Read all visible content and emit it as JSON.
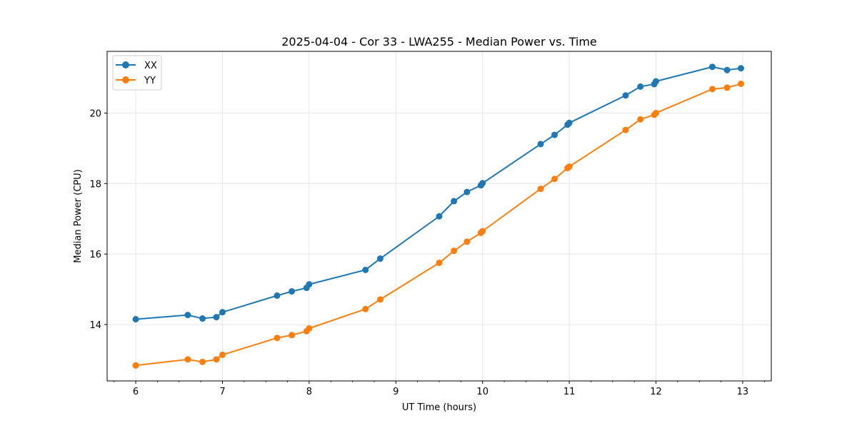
{
  "chart_data": {
    "type": "line",
    "title": "2025-04-04 - Cor 33 - LWA255 - Median Power vs. Time",
    "xlabel": "UT Time (hours)",
    "ylabel": "Median Power (CPU)",
    "xlim": [
      5.67,
      13.33
    ],
    "ylim": [
      12.4,
      21.75
    ],
    "xticks": [
      6,
      7,
      8,
      9,
      10,
      11,
      12,
      13
    ],
    "xtick_labels": [
      "6",
      "7",
      "8",
      "9",
      "10",
      "11",
      "12",
      "13"
    ],
    "yticks": [
      14,
      16,
      18,
      20
    ],
    "ytick_labels": [
      "14",
      "16",
      "18",
      "20"
    ],
    "x_minor_step": 0.25,
    "grid": true,
    "legend_position": "top-left",
    "series": [
      {
        "name": "XX",
        "color": "#1f77b4",
        "x": [
          6.0,
          6.6,
          6.77,
          6.93,
          7.0,
          7.63,
          7.8,
          7.97,
          8.0,
          8.65,
          8.82,
          9.5,
          9.67,
          9.82,
          9.98,
          10.0,
          10.67,
          10.83,
          10.98,
          11.0,
          11.65,
          11.82,
          11.98,
          12.0,
          12.65,
          12.82,
          12.98
        ],
        "y": [
          14.15,
          14.27,
          14.17,
          14.21,
          14.35,
          14.82,
          14.94,
          15.04,
          15.14,
          15.55,
          15.87,
          17.07,
          17.5,
          17.76,
          17.95,
          18.01,
          19.12,
          19.38,
          19.67,
          19.72,
          20.5,
          20.75,
          20.82,
          20.9,
          21.31,
          21.22,
          21.27
        ]
      },
      {
        "name": "YY",
        "color": "#ff7f0e",
        "x": [
          6.0,
          6.6,
          6.77,
          6.93,
          7.0,
          7.63,
          7.8,
          7.97,
          8.0,
          8.65,
          8.82,
          9.5,
          9.67,
          9.82,
          9.98,
          10.0,
          10.67,
          10.83,
          10.98,
          11.0,
          11.65,
          11.82,
          11.98,
          12.0,
          12.65,
          12.82,
          12.98
        ],
        "y": [
          12.84,
          13.01,
          12.94,
          13.01,
          13.14,
          13.62,
          13.7,
          13.81,
          13.89,
          14.44,
          14.71,
          15.75,
          16.09,
          16.35,
          16.6,
          16.65,
          17.85,
          18.13,
          18.44,
          18.48,
          19.52,
          19.82,
          19.95,
          20.0,
          20.68,
          20.72,
          20.83
        ]
      }
    ]
  }
}
